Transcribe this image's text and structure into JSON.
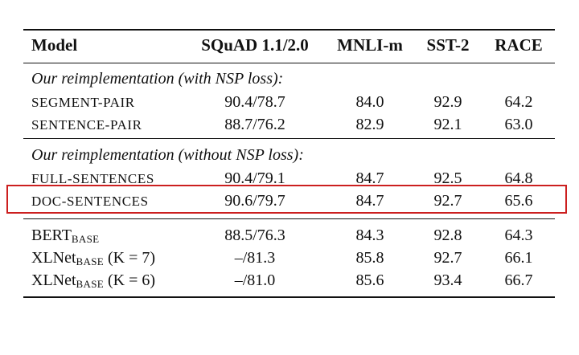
{
  "header": {
    "model": "Model",
    "squad": "SQuAD 1.1/2.0",
    "mnli": "MNLI-m",
    "sst2": "SST-2",
    "race": "RACE"
  },
  "groups": [
    {
      "title": "Our reimplementation (with NSP loss):",
      "rows": [
        {
          "model": "SEGMENT-PAIR",
          "squad": "90.4/78.7",
          "mnli": "84.0",
          "sst2": "92.9",
          "race": "64.2"
        },
        {
          "model": "SENTENCE-PAIR",
          "squad": "88.7/76.2",
          "mnli": "82.9",
          "sst2": "92.1",
          "race": "63.0"
        }
      ]
    },
    {
      "title": "Our reimplementation (without NSP loss):",
      "rows": [
        {
          "model": "FULL-SENTENCES",
          "squad": "90.4/79.1",
          "mnli": "84.7",
          "sst2": "92.5",
          "race": "64.8"
        },
        {
          "model": "DOC-SENTENCES",
          "squad": "90.6/79.7",
          "mnli": "84.7",
          "sst2": "92.7",
          "race": "65.6"
        }
      ]
    }
  ],
  "baselines": [
    {
      "model": "BERT",
      "sub": "BASE",
      "suffix": "",
      "squad": "88.5/76.3",
      "mnli": "84.3",
      "sst2": "92.8",
      "race": "64.3"
    },
    {
      "model": "XLNet",
      "sub": "BASE",
      "suffix": " (K = 7)",
      "squad": "–/81.3",
      "mnli": "85.8",
      "sst2": "92.7",
      "race": "66.1"
    },
    {
      "model": "XLNet",
      "sub": "BASE",
      "suffix": " (K = 6)",
      "squad": "–/81.0",
      "mnli": "85.6",
      "sst2": "93.4",
      "race": "66.7"
    }
  ],
  "highlight_color": "#cc1f1f"
}
